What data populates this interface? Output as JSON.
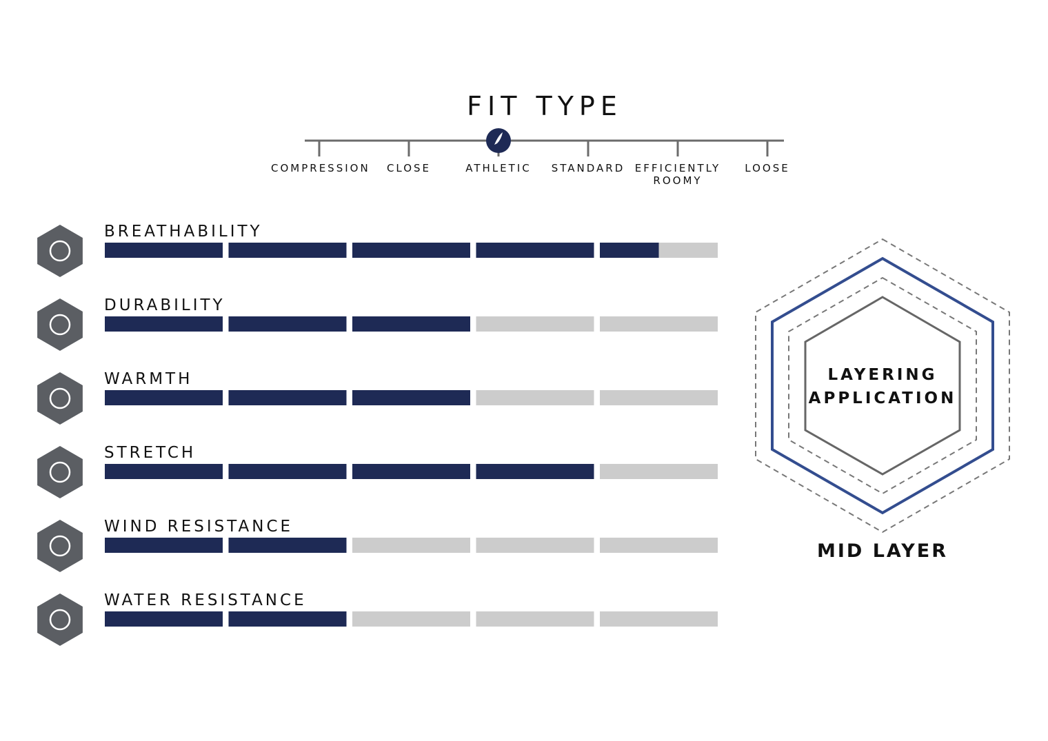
{
  "fit_type": {
    "title": "FIT TYPE",
    "options": [
      {
        "label": "COMPRESSION"
      },
      {
        "label": "CLOSE"
      },
      {
        "label": "ATHLETIC",
        "selected": true
      },
      {
        "label": "STANDARD"
      },
      {
        "label": "EFFICIENTLY ROOMY"
      },
      {
        "label": "LOOSE"
      }
    ]
  },
  "ratings": {
    "segments": 5,
    "items": [
      {
        "label": "BREATHABILITY",
        "value": 4.5
      },
      {
        "label": "DURABILITY",
        "value": 3
      },
      {
        "label": "WARMTH",
        "value": 3
      },
      {
        "label": "STRETCH",
        "value": 4
      },
      {
        "label": "WIND RESISTANCE",
        "value": 2
      },
      {
        "label": "WATER RESISTANCE",
        "value": 2
      }
    ]
  },
  "layering": {
    "title": "LAYERING APPLICATION",
    "layer": "MID LAYER"
  }
}
